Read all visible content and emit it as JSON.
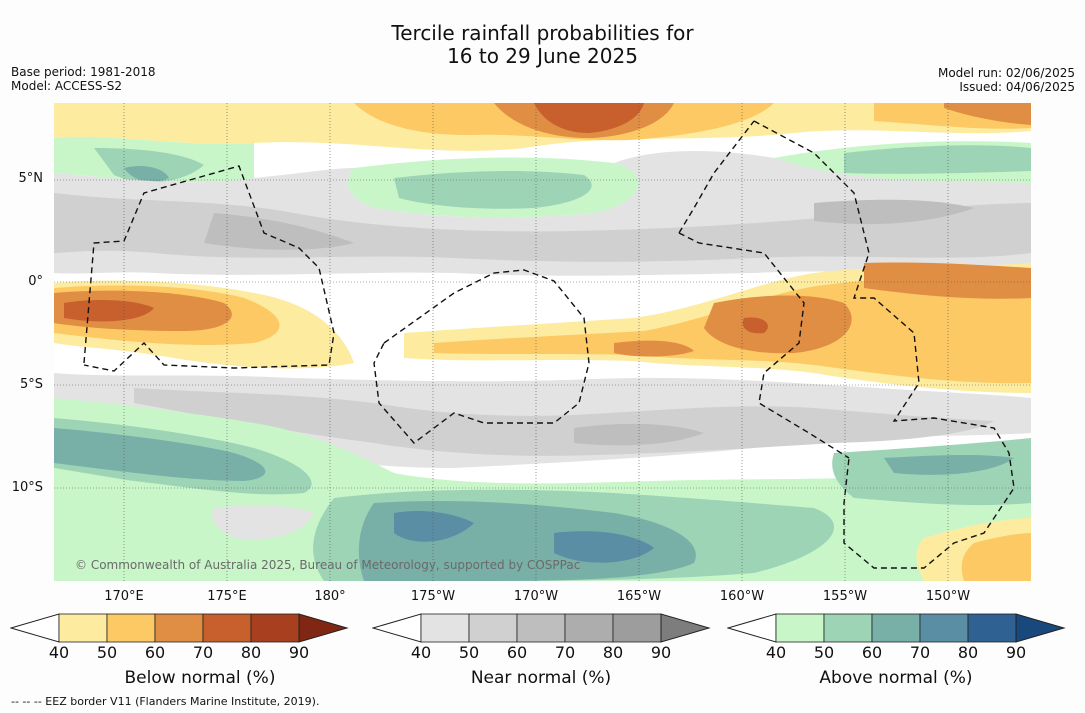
{
  "title_line1": "Tercile rainfall probabilities for",
  "title_line2": "16 to 29 June 2025",
  "base_period": "Base period: 1981-2018",
  "model": "Model: ACCESS-S2",
  "model_run": "Model run: 02/06/2025",
  "issued": "Issued: 04/06/2025",
  "lat_labels": [
    "5°N",
    "0°",
    "5°S",
    "10°S"
  ],
  "lon_labels": [
    "170°E",
    "175°E",
    "180°",
    "175°W",
    "170°W",
    "165°W",
    "160°W",
    "155°W",
    "150°W"
  ],
  "copyright": "© Commonwealth of Australia 2025, Bureau of Meteorology, supported by COSPPac",
  "footer": "--  --  -- EEZ border V11 (Flanders Marine Institute, 2019).",
  "colorbars": [
    {
      "label": "Below normal (%)",
      "ticks": [
        "40",
        "50",
        "60",
        "70",
        "80",
        "90"
      ],
      "colors": [
        "#ffffff",
        "#fdeba0",
        "#fcc964",
        "#df8e43",
        "#c7602d",
        "#a8401f",
        "#7f2713"
      ]
    },
    {
      "label": "Near normal (%)",
      "ticks": [
        "40",
        "50",
        "60",
        "70",
        "80",
        "90"
      ],
      "colors": [
        "#ffffff",
        "#e3e3e3",
        "#d0d0d0",
        "#bebebe",
        "#adadad",
        "#9d9d9d",
        "#7d7d7d"
      ]
    },
    {
      "label": "Above normal (%)",
      "ticks": [
        "40",
        "50",
        "60",
        "70",
        "80",
        "90"
      ],
      "colors": [
        "#ffffff",
        "#c9f6c9",
        "#9ed4b6",
        "#78b0a8",
        "#5a8ea4",
        "#2f6293",
        "#18487c"
      ]
    }
  ]
}
